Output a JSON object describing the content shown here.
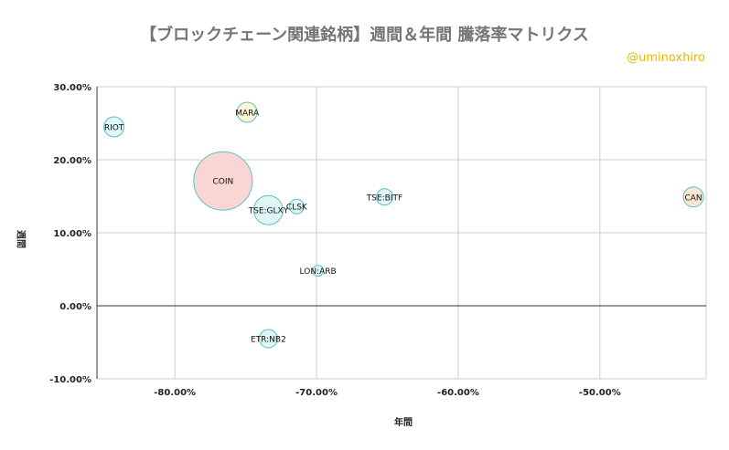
{
  "title": "【ブロックチェーン関連銘柄】週間＆年間 騰落率マトリクス",
  "watermark": "@uminoxhiro",
  "chart_data": {
    "type": "scatter",
    "title": "【ブロックチェーン関連銘柄】週間＆年間 騰落率マトリクス",
    "xlabel": "年間",
    "ylabel": "週間",
    "xlim": [
      -0.855,
      -0.425
    ],
    "ylim": [
      -0.1,
      0.3
    ],
    "xticks": [
      {
        "value": -0.8,
        "label": "-80.00%"
      },
      {
        "value": -0.7,
        "label": "-70.00%"
      },
      {
        "value": -0.6,
        "label": "-60.00%"
      },
      {
        "value": -0.5,
        "label": "-50.00%"
      }
    ],
    "yticks": [
      {
        "value": 0.3,
        "label": "30.00%"
      },
      {
        "value": 0.2,
        "label": "20.00%"
      },
      {
        "value": 0.1,
        "label": "10.00%"
      },
      {
        "value": 0.0,
        "label": "0.00%"
      },
      {
        "value": -0.1,
        "label": "-10.00%"
      }
    ],
    "grid": true,
    "points": [
      {
        "name": "RIOT",
        "x": -0.843,
        "y": 0.245,
        "size": 11,
        "color": "#dff5f6"
      },
      {
        "name": "MARA",
        "x": -0.749,
        "y": 0.265,
        "size": 11,
        "color": "#fcf4d6"
      },
      {
        "name": "COIN",
        "x": -0.766,
        "y": 0.171,
        "size": 32,
        "color": "#f9d6d3"
      },
      {
        "name": "TSE:GLXY",
        "x": -0.734,
        "y": 0.131,
        "size": 16,
        "color": "#dff5f6"
      },
      {
        "name": "CLSK",
        "x": -0.714,
        "y": 0.136,
        "size": 8,
        "color": "#dff5f6"
      },
      {
        "name": "TSE:BITF",
        "x": -0.652,
        "y": 0.149,
        "size": 9,
        "color": "#dff5f6"
      },
      {
        "name": "CAN",
        "x": -0.434,
        "y": 0.149,
        "size": 11,
        "color": "#fbe7d3"
      },
      {
        "name": "LON:ARB",
        "x": -0.699,
        "y": 0.048,
        "size": 6,
        "color": "#dff5f6"
      },
      {
        "name": "ETR:NB2",
        "x": -0.734,
        "y": -0.045,
        "size": 10,
        "color": "#dff5f6"
      }
    ],
    "bubble_stroke": "#5bc0c4"
  }
}
